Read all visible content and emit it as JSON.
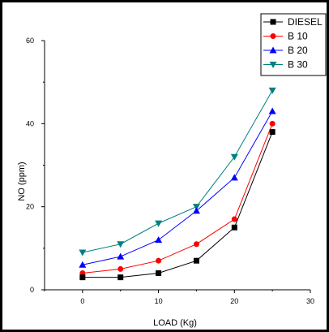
{
  "chart_data": {
    "type": "line",
    "xlabel": "LOAD (Kg)",
    "ylabel": "NO (ppm)",
    "xlim": [
      -5,
      30
    ],
    "ylim": [
      0,
      60
    ],
    "xticks": [
      "0",
      "10",
      "20",
      "30"
    ],
    "yticks": [
      "0",
      "20",
      "40",
      "60"
    ],
    "x": [
      0,
      5,
      10,
      15,
      20,
      25
    ],
    "grid": false,
    "legend_position": "top-right",
    "series": [
      {
        "name": "DIESEL",
        "values": [
          3,
          3,
          4,
          7,
          15,
          38
        ],
        "color": "#000000",
        "marker": "square"
      },
      {
        "name": "B 10",
        "values": [
          4,
          5,
          7,
          11,
          17,
          40
        ],
        "color": "#ff0000",
        "marker": "circle"
      },
      {
        "name": "B 20",
        "values": [
          6,
          8,
          12,
          19,
          27,
          43
        ],
        "color": "#0000ff",
        "marker": "triangle-up"
      },
      {
        "name": "B 30",
        "values": [
          9,
          11,
          16,
          20,
          32,
          48
        ],
        "color": "#008080",
        "marker": "triangle-down"
      }
    ]
  }
}
